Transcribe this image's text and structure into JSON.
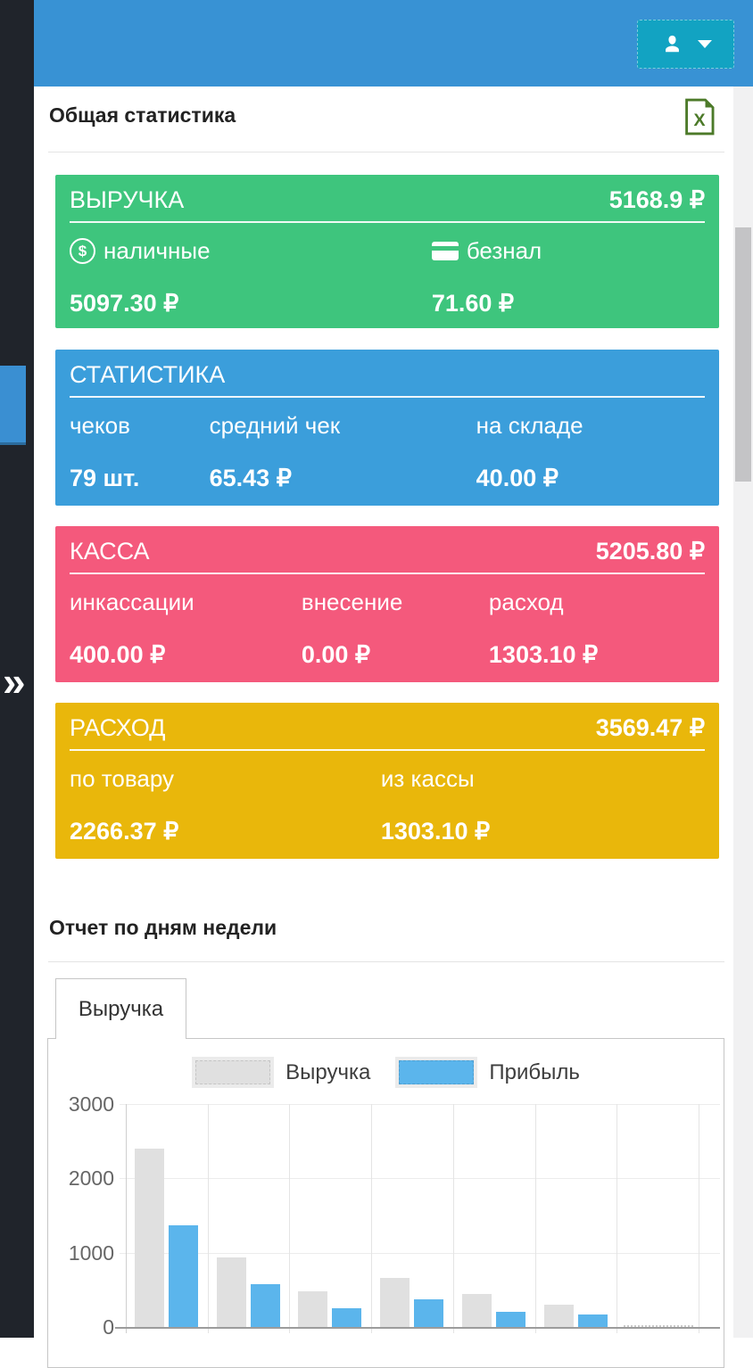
{
  "colors": {
    "header-blue": "#3892d4",
    "button-teal": "#12a3c2",
    "sidebar-dark": "#20242b",
    "sidebar-highlight": "#3a8fd2",
    "card-green": "#3ec57d",
    "card-blue": "#3b9edb",
    "card-pink": "#f4597c",
    "card-yellow": "#e9b70b",
    "bar-gray": "#e0e0e0",
    "bar-blue": "#5bb5ec"
  },
  "sidebar": {
    "expand_glyph": "»"
  },
  "icons": {
    "dollar_glyph": "$",
    "excel_glyph": "X"
  },
  "sections": {
    "stats_title": "Общая статистика",
    "report_title": "Отчет по дням недели"
  },
  "cards": [
    {
      "title": "ВЫРУЧКА",
      "total": "5168.9 ₽",
      "color": "#3ec57d",
      "items": [
        {
          "icon": "dollar-circle-icon",
          "label": "наличные",
          "value": "5097.30 ₽"
        },
        {
          "icon": "credit-card-icon",
          "label": "безнал",
          "value": "71.60 ₽"
        }
      ]
    },
    {
      "title": "СТАТИСТИКА",
      "total": "",
      "color": "#3b9edb",
      "items": [
        {
          "label": "чеков",
          "value": "79 шт."
        },
        {
          "label": "средний чек",
          "value": "65.43 ₽"
        },
        {
          "label": "на складе",
          "value": "40.00 ₽"
        }
      ]
    },
    {
      "title": "КАССА",
      "total": "5205.80 ₽",
      "color": "#f4597c",
      "items": [
        {
          "label": "инкассации",
          "value": "400.00 ₽"
        },
        {
          "label": "внесение",
          "value": "0.00 ₽"
        },
        {
          "label": "расход",
          "value": "1303.10 ₽"
        }
      ]
    },
    {
      "title": "РАСХОД",
      "total": "3569.47 ₽",
      "color": "#e9b70b",
      "items": [
        {
          "label": "по товару",
          "value": "2266.37 ₽"
        },
        {
          "label": "из кассы",
          "value": "1303.10 ₽"
        }
      ]
    }
  ],
  "tabs": [
    {
      "label": "Выручка",
      "active": true
    }
  ],
  "chart_data": {
    "type": "bar",
    "title": "Отчет по дням недели",
    "categories": [
      "",
      "",
      "",
      "",
      "",
      "",
      ""
    ],
    "series": [
      {
        "name": "Выручка",
        "color": "#e0e0e0",
        "values": [
          2400,
          940,
          480,
          660,
          440,
          300,
          0
        ]
      },
      {
        "name": "Прибыль",
        "color": "#5bb5ec",
        "values": [
          1370,
          580,
          250,
          370,
          200,
          170,
          0
        ]
      }
    ],
    "xlabel": "",
    "ylabel": "",
    "ylim": [
      0,
      3000
    ],
    "yticks": [
      0,
      1000,
      2000,
      3000
    ],
    "legend_position": "top",
    "grid": true
  }
}
